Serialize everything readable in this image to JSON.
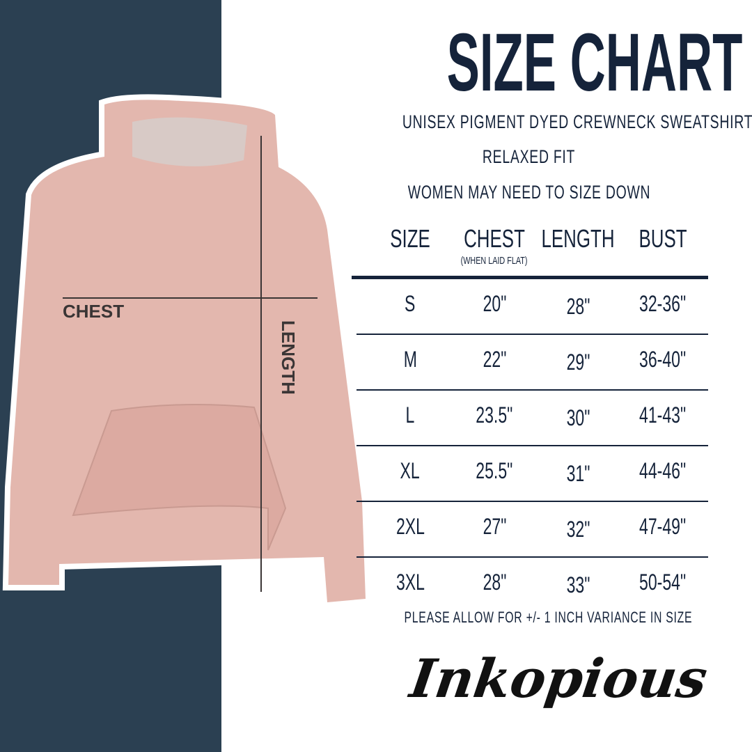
{
  "title": "SIZE CHART",
  "subtitle": "UNISEX PIGMENT DYED CREWNECK SWEATSHIRT",
  "fit": "RELAXED FIT",
  "advice": "WOMEN MAY NEED TO SIZE DOWN",
  "diagram": {
    "chest_label": "CHEST",
    "length_label": "LENGTH"
  },
  "table": {
    "headers": [
      "SIZE",
      "CHEST",
      "LENGTH",
      "BUST"
    ],
    "chest_note": "(WHEN LAID FLAT)",
    "rows": [
      [
        "S",
        "20\"",
        "28\"",
        "32-36\""
      ],
      [
        "M",
        "22\"",
        "29\"",
        "36-40\""
      ],
      [
        "L",
        "23.5\"",
        "30\"",
        "41-43\""
      ],
      [
        "XL",
        "25.5\"",
        "31\"",
        "44-46\""
      ],
      [
        "2XL",
        "27\"",
        "32\"",
        "47-49\""
      ],
      [
        "3XL",
        "28\"",
        "33\"",
        "50-54\""
      ]
    ]
  },
  "note": "PLEASE ALLOW FOR +/- 1 INCH VARIANCE IN SIZE",
  "brand": "Inkopious",
  "colors": {
    "navy": "#15233a",
    "panel": "#2b4052",
    "garment": "#e3b7ae"
  }
}
